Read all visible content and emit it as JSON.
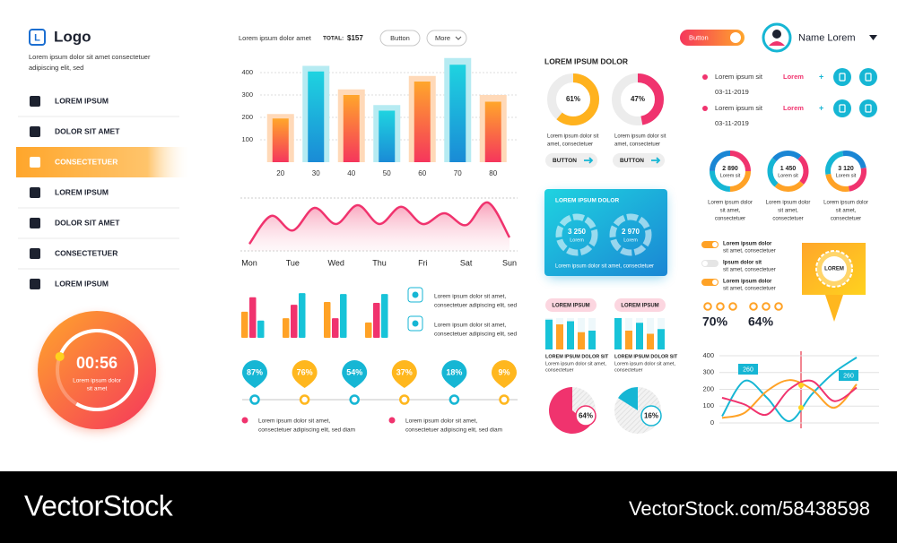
{
  "sidebar": {
    "logo_letter": "L",
    "logo": "Logo",
    "description": [
      "Lorem ipsum dolor sit amet consectetuer",
      "adipiscing elit, sed"
    ],
    "menu": [
      "LOREM IPSUM",
      "DOLOR SIT AMET",
      "CONSECTETUER",
      "LOREM IPSUM",
      "DOLOR SIT AMET",
      "CONSECTETUER",
      "LOREM IPSUM"
    ],
    "active_item": 2,
    "timer": {
      "time": "00:56",
      "caption": [
        "Lorem ipsum dolor",
        "sit amet"
      ],
      "progress": 78
    }
  },
  "bar_chart": {
    "type": "bar",
    "title": "Lorem ipsum dolor amet",
    "total_label": "TOTAL:",
    "total": "$157",
    "buttons": [
      "Button",
      "More"
    ],
    "categories": [
      "20",
      "30",
      "40",
      "50",
      "60",
      "70",
      "80"
    ],
    "series": [
      {
        "values": [
          215,
          430,
          325,
          255,
          385,
          465,
          300
        ],
        "colors": [
          "#ffd9b8",
          "#b6ebf2"
        ]
      },
      {
        "values": [
          195,
          405,
          300,
          230,
          360,
          435,
          270
        ],
        "colors": [
          [
            "#ffa62b",
            "#f5365c"
          ],
          [
            "#1fd3e0",
            "#1a8bd6"
          ]
        ]
      }
    ],
    "ylim": [
      0,
      480
    ],
    "yticks": [
      100,
      200,
      300,
      400
    ],
    "grid": true
  },
  "wave_chart": {
    "type": "area",
    "x": [
      0,
      0.5,
      1,
      1.5,
      2,
      2.5,
      3,
      3.5,
      4,
      4.5,
      5,
      5.5,
      6
    ],
    "values": [
      13,
      65,
      38,
      80,
      50,
      85,
      50,
      82,
      50,
      70,
      48,
      90,
      25
    ],
    "xlim": [
      0,
      6
    ],
    "ylim": [
      0,
      100
    ],
    "xticks": [
      {
        "value": 0,
        "label": "Mon"
      },
      {
        "value": 1,
        "label": "Tue"
      },
      {
        "value": 2,
        "label": "Wed"
      },
      {
        "value": 3,
        "label": "Thu"
      },
      {
        "value": 4,
        "label": "Fri"
      },
      {
        "value": 5,
        "label": "Sat"
      },
      {
        "value": 6,
        "label": "Sun"
      }
    ],
    "color": "#f0336e"
  },
  "grouped_bars": {
    "type": "bar",
    "categories": [
      null,
      null,
      null,
      null
    ],
    "ylim": [
      0,
      100
    ],
    "series": [
      {
        "color": "#ffa226",
        "values": [
          56,
          42,
          77,
          33
        ]
      },
      {
        "color": "#f0336e",
        "values": [
          87,
          71,
          42,
          75
        ]
      },
      {
        "color": "#17c3d8",
        "values": [
          37,
          96,
          94,
          94
        ]
      }
    ]
  },
  "notes": [
    [
      "Lorem ipsum dolor sit amet,",
      "consectetuer adipiscing elit, sed"
    ],
    [
      "Lorem ipsum dolor sit amet,",
      "consectetuer adipiscing elit, sed"
    ]
  ],
  "pins": {
    "values": [
      87,
      76,
      54,
      37,
      18,
      9
    ],
    "value_labels": [
      "87%",
      "76%",
      "54%",
      "37%",
      "18%",
      "9%"
    ],
    "colors": [
      "#16b6d4",
      "#ffb71e"
    ]
  },
  "pin_legend": [
    [
      "Lorem ipsum dolor sit amet,",
      "consectetuer adipiscing elit, sed diam"
    ],
    [
      "Lorem ipsum dolor sit amet,",
      "consectetuer adipiscing elit, sed diam"
    ]
  ],
  "donuts": {
    "title": "LOREM IPSUM DOLOR",
    "items": [
      {
        "value": 61,
        "label": "61%",
        "color": "#ffb21e",
        "caption": [
          "Lorem ipsum dolor sit",
          "amet, consectetuer"
        ],
        "button": "BUTTON"
      },
      {
        "value": 47,
        "label": "47%",
        "color": "#f0336e",
        "caption": [
          "Lorem ipsum dolor sit",
          "amet, consectetuer"
        ],
        "button": "BUTTON"
      }
    ]
  },
  "card": {
    "title": "LOREM IPSUM DOLOR",
    "rings": [
      {
        "value": "3 250",
        "caption": "Lorem"
      },
      {
        "value": "2 970",
        "caption": "Lorem"
      }
    ],
    "caption": "Lorem ipsum dolor sit amet, consectetuer"
  },
  "mini_bars": [
    {
      "type": "bar",
      "tag": "LOREM IPSUM",
      "categories": [
        null,
        null,
        null,
        null,
        null
      ],
      "values": [
        95,
        80,
        90,
        55,
        60
      ],
      "ylim": [
        0,
        100
      ],
      "colors": [
        "#17c3d8",
        "#ffa226"
      ],
      "title": "LOREM IPSUM DOLOR SIT",
      "caption": [
        "Lorem ipsum dolor sit amet,",
        "consectetuer"
      ]
    },
    {
      "type": "bar",
      "tag": "LOREM IPSUM",
      "categories": [
        null,
        null,
        null,
        null,
        null
      ],
      "values": [
        100,
        60,
        85,
        50,
        65
      ],
      "ylim": [
        0,
        100
      ],
      "colors": [
        "#17c3d8",
        "#ffa226"
      ],
      "title": "LOREM IPSUM DOLOR SIT",
      "caption": [
        "Lorem ipsum dolor sit amet,",
        "consectetuer"
      ]
    }
  ],
  "pies": [
    {
      "type": "pie",
      "value": 64,
      "label": "64%",
      "color": "#f0336e"
    },
    {
      "type": "pie",
      "value": 16,
      "label": "16%",
      "color": "#16b6d4"
    }
  ],
  "header": {
    "button": "Button",
    "user": "Name Lorem"
  },
  "events": [
    {
      "title": "Lorem ipsum sit",
      "tag": "Lorem",
      "plus": "+",
      "date": "03-11-2019"
    },
    {
      "title": "Lorem ipsum sit",
      "tag": "Lorem",
      "plus": "+",
      "date": "03-11-2019"
    }
  ],
  "kpi_rings": [
    {
      "value": "2 890",
      "label": "Lorem sit",
      "caption": [
        "Lorem ipsum dolor",
        "sit amet,",
        "consectetuer"
      ]
    },
    {
      "value": "1 450",
      "label": "Lorem sit",
      "caption": [
        "Lorem ipsum dolor",
        "sit amet,",
        "consectetuer"
      ]
    },
    {
      "value": "3 120",
      "label": "Lorem sit",
      "caption": [
        "Lorem ipsum dolor",
        "sit amet,",
        "consectetuer"
      ]
    }
  ],
  "toggles": [
    {
      "title": "Lorem ipsum dolor",
      "text": "sit amet, consectetuer",
      "on": true
    },
    {
      "title": "Ipsum dolor sit",
      "text": "sit amet, consectetuer",
      "on": false
    },
    {
      "title": "Lorem ipsum dolor",
      "text": "sit amet, consectetuer",
      "on": true
    }
  ],
  "badge": "LOREM",
  "stats": [
    "70%",
    "64%"
  ],
  "line_chart": {
    "type": "line",
    "categories": [
      null,
      null,
      null,
      null,
      null,
      null,
      null
    ],
    "ylim": [
      0,
      400
    ],
    "yticks": [
      0,
      100,
      200,
      300,
      400
    ],
    "grid": true,
    "series": [
      {
        "color": "#16b6d4",
        "values": [
          40,
          250,
          150,
          10,
          170,
          300,
          390
        ]
      },
      {
        "color": "#ffa226",
        "values": [
          30,
          60,
          190,
          255,
          200,
          90,
          230
        ]
      },
      {
        "color": "#f0336e",
        "values": [
          150,
          110,
          50,
          200,
          250,
          130,
          210
        ]
      }
    ],
    "annotations": [
      "260",
      "260"
    ]
  },
  "footer": {
    "brand": "VectorStock",
    "url": "VectorStock.com/58438598"
  }
}
